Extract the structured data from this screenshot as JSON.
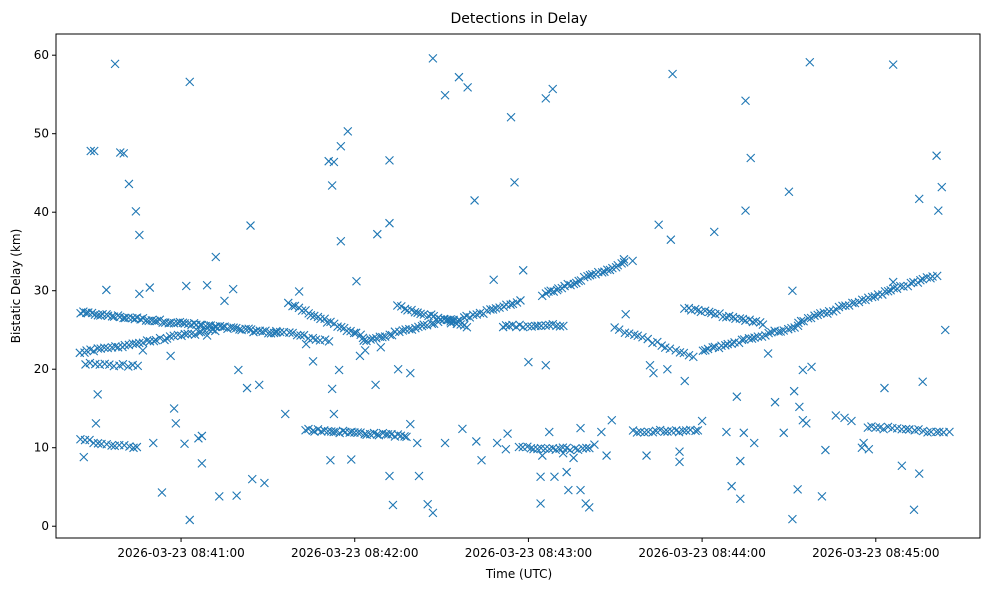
{
  "chart_data": {
    "type": "scatter",
    "title": "Detections in Delay",
    "xlabel": "Time (UTC)",
    "ylabel": "Bistatic Delay (km)",
    "marker": "x",
    "color": "#1f77b4",
    "x_units": "minutes since 2026-03-23 08:40:00",
    "xlim": [
      0.28,
      5.6
    ],
    "ylim": [
      -1.5,
      62.7
    ],
    "x_ticks": [
      {
        "value": 1,
        "label": "2026-03-23 08:41:00"
      },
      {
        "value": 2,
        "label": "2026-03-23 08:42:00"
      },
      {
        "value": 3,
        "label": "2026-03-23 08:43:00"
      },
      {
        "value": 4,
        "label": "2026-03-23 08:44:00"
      },
      {
        "value": 5,
        "label": "2026-03-23 08:45:00"
      }
    ],
    "y_ticks": [
      0,
      10,
      20,
      30,
      40,
      50,
      60
    ],
    "tracks": [
      {
        "name": "track-a-upper",
        "x_start": 0.42,
        "x_end": 1.55,
        "y_start": 27.2,
        "y_end": 24.6,
        "count": 70
      },
      {
        "name": "track-a-cont",
        "x_start": 1.55,
        "x_end": 1.85,
        "y_start": 24.9,
        "y_end": 23.6,
        "count": 14
      },
      {
        "name": "track-b-rising",
        "x_start": 0.42,
        "x_end": 1.2,
        "y_start": 22.1,
        "y_end": 25.0,
        "count": 40
      },
      {
        "name": "track-c",
        "x_start": 1.62,
        "x_end": 2.05,
        "y_start": 28.3,
        "y_end": 24.1,
        "count": 24
      },
      {
        "name": "track-d",
        "x_start": 2.05,
        "x_end": 2.55,
        "y_start": 23.5,
        "y_end": 26.5,
        "count": 28
      },
      {
        "name": "track-e",
        "x_start": 2.25,
        "x_end": 2.65,
        "y_start": 28.0,
        "y_end": 25.5,
        "count": 22
      },
      {
        "name": "track-f",
        "x_start": 2.55,
        "x_end": 2.95,
        "y_start": 26.0,
        "y_end": 28.6,
        "count": 22
      },
      {
        "name": "track-g",
        "x_start": 2.85,
        "x_end": 3.2,
        "y_start": 25.5,
        "y_end": 25.6,
        "count": 18
      },
      {
        "name": "track-h",
        "x_start": 3.08,
        "x_end": 3.55,
        "y_start": 29.5,
        "y_end": 33.5,
        "count": 30
      },
      {
        "name": "track-i",
        "x_start": 3.5,
        "x_end": 3.95,
        "y_start": 25.2,
        "y_end": 21.6,
        "count": 18
      },
      {
        "name": "track-j",
        "x_start": 3.9,
        "x_end": 4.35,
        "y_start": 27.8,
        "y_end": 25.8,
        "count": 24
      },
      {
        "name": "track-k",
        "x_start": 4.0,
        "x_end": 4.55,
        "y_start": 22.3,
        "y_end": 25.5,
        "count": 30
      },
      {
        "name": "track-l",
        "x_start": 4.55,
        "x_end": 5.35,
        "y_start": 26.0,
        "y_end": 32.0,
        "count": 44
      },
      {
        "name": "track-m-lower",
        "x_start": 0.42,
        "x_end": 0.75,
        "y_start": 11.0,
        "y_end": 10.0,
        "count": 14
      },
      {
        "name": "track-n",
        "x_start": 1.72,
        "x_end": 2.3,
        "y_start": 12.3,
        "y_end": 11.5,
        "count": 34
      },
      {
        "name": "track-o",
        "x_start": 2.95,
        "x_end": 3.35,
        "y_start": 10.0,
        "y_end": 9.8,
        "count": 20
      },
      {
        "name": "track-p",
        "x_start": 3.6,
        "x_end": 3.98,
        "y_start": 12.1,
        "y_end": 12.1,
        "count": 18
      },
      {
        "name": "track-q",
        "x_start": 4.95,
        "x_end": 5.42,
        "y_start": 12.7,
        "y_end": 11.9,
        "count": 20
      },
      {
        "name": "track-r",
        "x_start": 0.45,
        "x_end": 0.75,
        "y_start": 20.7,
        "y_end": 20.4,
        "count": 12
      }
    ],
    "outliers": [
      [
        0.48,
        47.8
      ],
      [
        0.5,
        47.8
      ],
      [
        0.62,
        58.9
      ],
      [
        0.65,
        47.6
      ],
      [
        0.67,
        47.5
      ],
      [
        0.7,
        43.6
      ],
      [
        0.74,
        40.1
      ],
      [
        0.76,
        37.1
      ],
      [
        0.57,
        30.1
      ],
      [
        0.82,
        30.4
      ],
      [
        0.76,
        29.6
      ],
      [
        1.05,
        56.6
      ],
      [
        1.15,
        30.7
      ],
      [
        1.2,
        34.3
      ],
      [
        1.25,
        28.7
      ],
      [
        1.3,
        30.2
      ],
      [
        1.22,
        3.8
      ],
      [
        1.32,
        3.9
      ],
      [
        1.05,
        0.8
      ],
      [
        1.1,
        11.2
      ],
      [
        1.12,
        8.0
      ],
      [
        0.89,
        4.3
      ],
      [
        1.4,
        38.3
      ],
      [
        1.38,
        17.6
      ],
      [
        1.45,
        18.0
      ],
      [
        1.48,
        5.5
      ],
      [
        1.41,
        6.0
      ],
      [
        1.33,
        19.9
      ],
      [
        1.85,
        46.5
      ],
      [
        1.88,
        46.4
      ],
      [
        1.92,
        48.4
      ],
      [
        1.96,
        50.3
      ],
      [
        1.87,
        43.4
      ],
      [
        1.92,
        36.3
      ],
      [
        2.01,
        31.2
      ],
      [
        1.87,
        17.5
      ],
      [
        1.91,
        19.9
      ],
      [
        1.88,
        14.3
      ],
      [
        1.86,
        8.4
      ],
      [
        1.98,
        8.5
      ],
      [
        2.2,
        46.6
      ],
      [
        2.2,
        38.6
      ],
      [
        2.13,
        37.2
      ],
      [
        2.2,
        6.4
      ],
      [
        2.22,
        2.7
      ],
      [
        2.37,
        6.4
      ],
      [
        2.42,
        2.8
      ],
      [
        2.45,
        1.7
      ],
      [
        2.32,
        13.0
      ],
      [
        2.45,
        59.6
      ],
      [
        2.52,
        54.9
      ],
      [
        2.6,
        57.2
      ],
      [
        2.65,
        55.9
      ],
      [
        2.69,
        41.5
      ],
      [
        2.73,
        8.4
      ],
      [
        2.8,
        31.4
      ],
      [
        2.9,
        52.1
      ],
      [
        2.92,
        43.8
      ],
      [
        2.97,
        32.6
      ],
      [
        3.1,
        54.5
      ],
      [
        3.14,
        55.7
      ],
      [
        3.1,
        20.5
      ],
      [
        3.07,
        6.3
      ],
      [
        3.15,
        6.3
      ],
      [
        3.07,
        2.9
      ],
      [
        3.22,
        6.9
      ],
      [
        3.3,
        4.6
      ],
      [
        3.35,
        2.4
      ],
      [
        3.33,
        2.9
      ],
      [
        3.55,
        34.0
      ],
      [
        3.6,
        33.8
      ],
      [
        3.75,
        38.4
      ],
      [
        3.82,
        36.5
      ],
      [
        3.87,
        8.2
      ],
      [
        3.83,
        57.6
      ],
      [
        4.25,
        54.2
      ],
      [
        4.28,
        46.9
      ],
      [
        4.25,
        40.2
      ],
      [
        4.07,
        37.5
      ],
      [
        4.2,
        16.5
      ],
      [
        4.22,
        8.3
      ],
      [
        4.22,
        3.5
      ],
      [
        4.17,
        5.1
      ],
      [
        4.5,
        42.6
      ],
      [
        4.52,
        30.0
      ],
      [
        4.62,
        59.1
      ],
      [
        4.63,
        20.3
      ],
      [
        4.55,
        4.7
      ],
      [
        4.52,
        0.9
      ],
      [
        4.58,
        19.9
      ],
      [
        4.6,
        13.1
      ],
      [
        4.69,
        3.8
      ],
      [
        5.1,
        58.8
      ],
      [
        5.1,
        31.1
      ],
      [
        5.35,
        47.2
      ],
      [
        5.38,
        43.2
      ],
      [
        5.36,
        40.2
      ],
      [
        5.25,
        41.7
      ],
      [
        5.4,
        25.0
      ],
      [
        5.05,
        17.6
      ],
      [
        5.15,
        7.7
      ],
      [
        5.25,
        6.7
      ],
      [
        5.27,
        18.4
      ],
      [
        5.22,
        2.1
      ],
      [
        0.52,
        16.8
      ],
      [
        0.44,
        8.8
      ],
      [
        0.51,
        13.1
      ],
      [
        0.78,
        22.4
      ],
      [
        0.84,
        10.6
      ],
      [
        0.94,
        21.7
      ],
      [
        0.96,
        15.0
      ],
      [
        0.97,
        13.1
      ],
      [
        1.02,
        10.5
      ],
      [
        1.12,
        11.5
      ],
      [
        1.03,
        30.6
      ],
      [
        1.15,
        24.3
      ],
      [
        1.6,
        14.3
      ],
      [
        1.68,
        29.9
      ],
      [
        1.72,
        23.2
      ],
      [
        1.76,
        21.0
      ],
      [
        2.03,
        21.7
      ],
      [
        2.06,
        22.4
      ],
      [
        2.12,
        18.0
      ],
      [
        2.15,
        22.8
      ],
      [
        2.25,
        20.0
      ],
      [
        2.32,
        19.5
      ],
      [
        2.36,
        10.6
      ],
      [
        2.52,
        10.6
      ],
      [
        2.62,
        12.4
      ],
      [
        2.7,
        10.8
      ],
      [
        2.82,
        10.6
      ],
      [
        2.88,
        11.8
      ],
      [
        3.0,
        20.9
      ],
      [
        3.12,
        12.0
      ],
      [
        3.2,
        9.3
      ],
      [
        3.26,
        8.7
      ],
      [
        3.3,
        12.5
      ],
      [
        3.42,
        12.0
      ],
      [
        3.38,
        10.4
      ],
      [
        3.45,
        9.0
      ],
      [
        3.48,
        13.5
      ],
      [
        3.56,
        27.0
      ],
      [
        3.7,
        20.5
      ],
      [
        3.72,
        19.5
      ],
      [
        3.8,
        20.0
      ],
      [
        3.9,
        18.5
      ],
      [
        4.0,
        13.4
      ],
      [
        4.14,
        12.0
      ],
      [
        4.24,
        11.9
      ],
      [
        4.3,
        10.6
      ],
      [
        4.38,
        22.0
      ],
      [
        4.42,
        15.8
      ],
      [
        4.47,
        11.9
      ],
      [
        4.53,
        17.2
      ],
      [
        4.56,
        15.2
      ],
      [
        4.58,
        13.5
      ],
      [
        4.71,
        9.7
      ],
      [
        4.77,
        14.1
      ],
      [
        4.82,
        13.8
      ],
      [
        4.86,
        13.4
      ],
      [
        4.92,
        10.0
      ],
      [
        4.93,
        10.6
      ],
      [
        4.96,
        9.8
      ],
      [
        3.87,
        9.5
      ],
      [
        3.68,
        9.0
      ],
      [
        3.23,
        4.6
      ],
      [
        3.08,
        9.0
      ],
      [
        2.87,
        9.8
      ]
    ]
  }
}
